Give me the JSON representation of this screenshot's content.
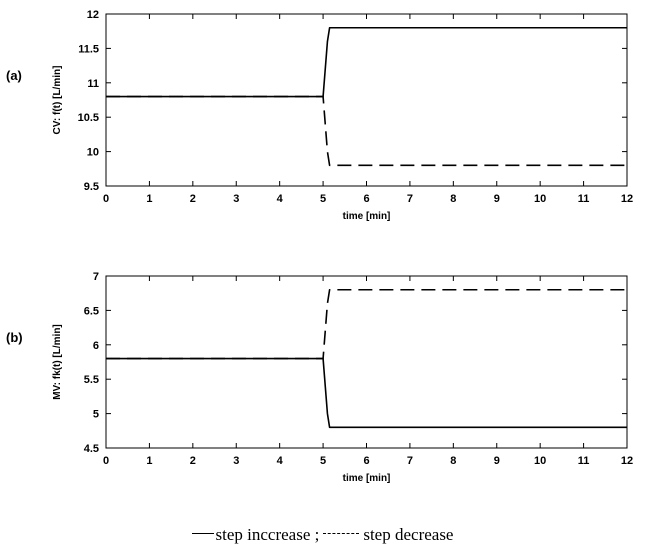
{
  "chart_data": [
    {
      "type": "line",
      "panel_label": "(a)",
      "xlabel": "time [min]",
      "ylabel": "CV: f(t) [L/min]",
      "xlim": [
        0,
        12
      ],
      "ylim": [
        9.5,
        12
      ],
      "xticks": [
        "0",
        "1",
        "2",
        "3",
        "4",
        "5",
        "6",
        "7",
        "8",
        "9",
        "10",
        "11",
        "12"
      ],
      "yticks": [
        "9.5",
        "10",
        "10.5",
        "11",
        "11.5",
        "12"
      ],
      "series": [
        {
          "key": "increase",
          "style": "solid",
          "x": [
            0,
            5.0,
            5.05,
            5.1,
            5.15,
            12
          ],
          "y": [
            10.8,
            10.8,
            11.2,
            11.6,
            11.8,
            11.8
          ]
        },
        {
          "key": "decrease",
          "style": "dashed",
          "x": [
            0,
            5.0,
            5.05,
            5.1,
            5.15,
            12
          ],
          "y": [
            10.8,
            10.8,
            10.4,
            10.0,
            9.8,
            9.8
          ]
        }
      ]
    },
    {
      "type": "line",
      "panel_label": "(b)",
      "xlabel": "time [min]",
      "ylabel": "MV: fk(t) [L/min]",
      "xlim": [
        0,
        12
      ],
      "ylim": [
        4.5,
        7
      ],
      "xticks": [
        "0",
        "1",
        "2",
        "3",
        "4",
        "5",
        "6",
        "7",
        "8",
        "9",
        "10",
        "11",
        "12"
      ],
      "yticks": [
        "4.5",
        "5",
        "5.5",
        "6",
        "6.5",
        "7"
      ],
      "series": [
        {
          "key": "increase",
          "style": "solid",
          "x": [
            0,
            5.0,
            5.05,
            5.1,
            5.15,
            12
          ],
          "y": [
            5.8,
            5.8,
            5.4,
            5.0,
            4.8,
            4.8
          ]
        },
        {
          "key": "decrease",
          "style": "dashed",
          "x": [
            0,
            5.0,
            5.05,
            5.1,
            5.15,
            12
          ],
          "y": [
            5.8,
            5.8,
            6.2,
            6.6,
            6.8,
            6.8
          ]
        }
      ]
    }
  ],
  "legend": {
    "increase_label": "step inccrease ;",
    "decrease_label": "step decrease"
  }
}
